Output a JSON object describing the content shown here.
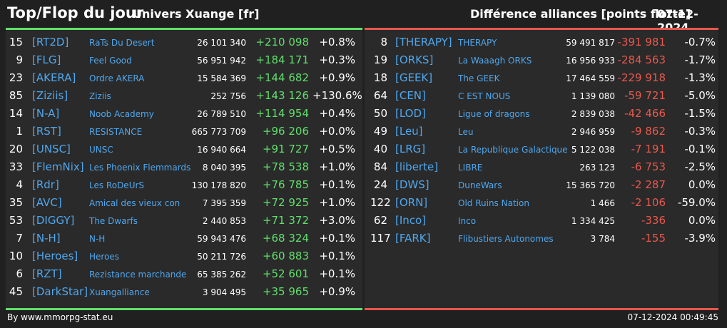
{
  "header": {
    "title": "Top/Flop du jour",
    "universe": "Univers Xuange [fr]",
    "metric": "Différence alliances [points flotte]",
    "date": "07-12-2024"
  },
  "colors": {
    "positive": "#5fe06a",
    "negative": "#e9574c",
    "link": "#4ea7ef"
  },
  "top": [
    {
      "rank": "15",
      "tag": "[RT2D]",
      "name": "RaTs Du Desert",
      "points": "26 101 340",
      "diff": "+210 098",
      "pct": "+0.8%"
    },
    {
      "rank": "9",
      "tag": "[FLG]",
      "name": "Feel Good",
      "points": "56 951 942",
      "diff": "+184 171",
      "pct": "+0.3%"
    },
    {
      "rank": "23",
      "tag": "[AKERA]",
      "name": "Ordre AKERA",
      "points": "15 584 369",
      "diff": "+144 682",
      "pct": "+0.9%"
    },
    {
      "rank": "85",
      "tag": "[Ziziis]",
      "name": "Ziziis",
      "points": "252 756",
      "diff": "+143 126",
      "pct": "+130.6%"
    },
    {
      "rank": "14",
      "tag": "[N-A]",
      "name": "Noob Academy",
      "points": "26 789 510",
      "diff": "+114 954",
      "pct": "+0.4%"
    },
    {
      "rank": "1",
      "tag": "[RST]",
      "name": "RESISTANCE",
      "points": "665 773 709",
      "diff": "+96 206",
      "pct": "+0.0%"
    },
    {
      "rank": "20",
      "tag": "[UNSC]",
      "name": "UNSC",
      "points": "16 940 664",
      "diff": "+91 727",
      "pct": "+0.5%"
    },
    {
      "rank": "33",
      "tag": "[FlemNix]",
      "name": "Les Phoenix Flemmards",
      "points": "8 040 395",
      "diff": "+78 538",
      "pct": "+1.0%"
    },
    {
      "rank": "4",
      "tag": "[Rdr]",
      "name": "Les RoDeUrS",
      "points": "130 178 820",
      "diff": "+76 785",
      "pct": "+0.1%"
    },
    {
      "rank": "35",
      "tag": "[AVC]",
      "name": "Amical des vieux con",
      "points": "7 395 359",
      "diff": "+72 925",
      "pct": "+1.0%"
    },
    {
      "rank": "53",
      "tag": "[DIGGY]",
      "name": "The Dwarfs",
      "points": "2 440 853",
      "diff": "+71 372",
      "pct": "+3.0%"
    },
    {
      "rank": "7",
      "tag": "[N-H]",
      "name": "N-H",
      "points": "59 943 476",
      "diff": "+68 324",
      "pct": "+0.1%"
    },
    {
      "rank": "10",
      "tag": "[Heroes]",
      "name": "Heroes",
      "points": "50 211 726",
      "diff": "+60 883",
      "pct": "+0.1%"
    },
    {
      "rank": "6",
      "tag": "[RZT]",
      "name": "Rezistance marchande",
      "points": "65 385 262",
      "diff": "+52 601",
      "pct": "+0.1%"
    },
    {
      "rank": "45",
      "tag": "[DarkStar]",
      "name": "Xuangalliance",
      "points": "3 904 495",
      "diff": "+35 965",
      "pct": "+0.9%"
    }
  ],
  "flop": [
    {
      "rank": "8",
      "tag": "[THERAPY]",
      "name": "THERAPY",
      "points": "59 491 817",
      "diff": "-391 981",
      "pct": "-0.7%"
    },
    {
      "rank": "19",
      "tag": "[ORKS]",
      "name": "La Waaagh ORKS",
      "points": "16 956 933",
      "diff": "-284 563",
      "pct": "-1.7%"
    },
    {
      "rank": "18",
      "tag": "[GEEK]",
      "name": "The GEEK",
      "points": "17 464 559",
      "diff": "-229 918",
      "pct": "-1.3%"
    },
    {
      "rank": "64",
      "tag": "[CEN]",
      "name": "C EST NOUS",
      "points": "1 139 080",
      "diff": "-59 721",
      "pct": "-5.0%"
    },
    {
      "rank": "50",
      "tag": "[LOD]",
      "name": "Ligue of dragons",
      "points": "2 839 038",
      "diff": "-42 466",
      "pct": "-1.5%"
    },
    {
      "rank": "49",
      "tag": "[Leu]",
      "name": "Leu",
      "points": "2 946 959",
      "diff": "-9 862",
      "pct": "-0.3%"
    },
    {
      "rank": "40",
      "tag": "[LRG]",
      "name": "La Republique Galactique",
      "points": "5 122 038",
      "diff": "-7 191",
      "pct": "-0.1%"
    },
    {
      "rank": "84",
      "tag": "[liberte]",
      "name": "LIBRE",
      "points": "263 123",
      "diff": "-6 753",
      "pct": "-2.5%"
    },
    {
      "rank": "24",
      "tag": "[DWS]",
      "name": "DuneWars",
      "points": "15 365 720",
      "diff": "-2 287",
      "pct": "0.0%"
    },
    {
      "rank": "122",
      "tag": "[ORN]",
      "name": "Old Ruins Nation",
      "points": "1 466",
      "diff": "-2 106",
      "pct": "-59.0%"
    },
    {
      "rank": "62",
      "tag": "[Inco]",
      "name": "Inco",
      "points": "1 334 425",
      "diff": "-336",
      "pct": "0.0%"
    },
    {
      "rank": "117",
      "tag": "[FARK]",
      "name": "Flibustiers Autonomes",
      "points": "3 784",
      "diff": "-155",
      "pct": "-3.9%"
    }
  ],
  "footer": {
    "credit": "By www.mmorpg-stat.eu",
    "timestamp": "07-12-2024 00:49:45"
  }
}
